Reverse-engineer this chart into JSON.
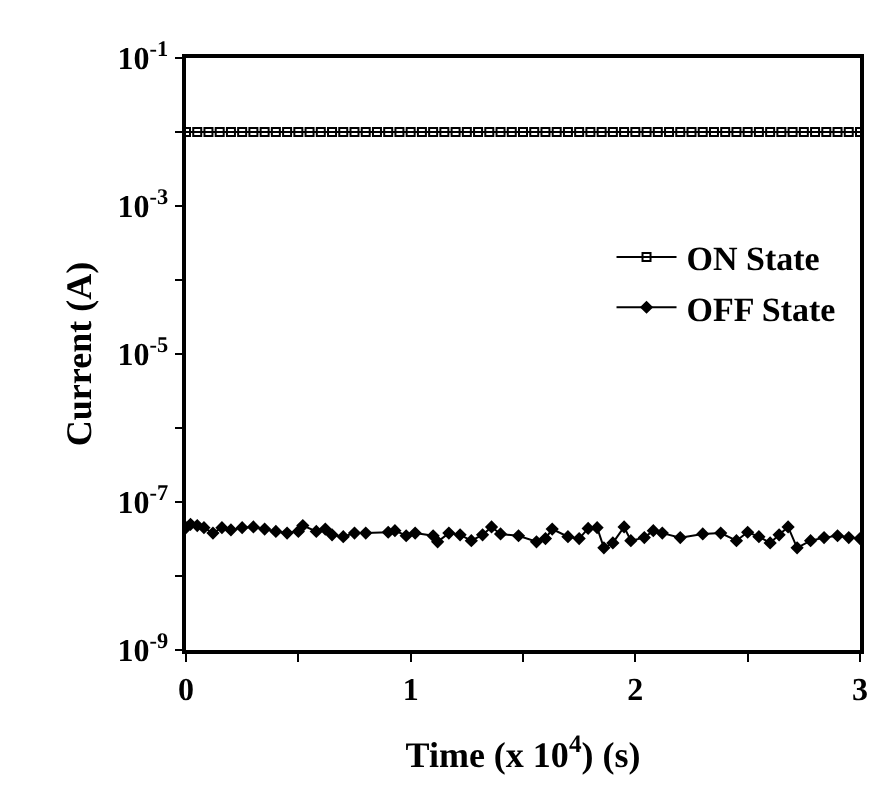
{
  "chart_data": {
    "type": "line",
    "xlabel": "Time (x 10$^{4}$) (s)",
    "ylabel": "Current (A)",
    "log": "y",
    "xlim": [
      0,
      3
    ],
    "xticks": [
      0,
      {
        "value": 0.5,
        "label": null
      },
      1,
      {
        "value": 1.5,
        "label": null
      },
      2,
      {
        "value": 2.5,
        "label": null
      },
      3
    ],
    "ylim": [
      1e-09,
      0.1
    ],
    "yticks": [
      {
        "value": 1e-09,
        "label": "10$^{-9}$"
      },
      {
        "value": 1e-08,
        "label": null
      },
      {
        "value": 1e-07,
        "label": "10$^{-7}$"
      },
      {
        "value": 1e-06,
        "label": null
      },
      {
        "value": 1e-05,
        "label": "10$^{-5}$"
      },
      {
        "value": 0.0001,
        "label": null
      },
      {
        "value": 0.001,
        "label": "10$^{-3}$"
      },
      {
        "value": 0.01,
        "label": null
      },
      {
        "value": 0.1,
        "label": "10$^{-1}$"
      }
    ],
    "grid": false,
    "legend": "right",
    "line_style": "solid",
    "series": [
      {
        "name": "ON State",
        "color": "#000000",
        "marker": "square",
        "x": [
          0,
          0.05,
          0.1,
          0.15,
          0.2,
          0.25,
          0.3,
          0.35,
          0.4,
          0.45,
          0.5,
          0.55,
          0.6,
          0.65,
          0.7,
          0.75,
          0.8,
          0.85,
          0.9,
          0.95,
          1,
          1.05,
          1.1,
          1.15,
          1.2,
          1.25,
          1.3,
          1.35,
          1.4,
          1.45,
          1.5,
          1.55,
          1.6,
          1.65,
          1.7,
          1.75,
          1.8,
          1.85,
          1.9,
          1.95,
          2,
          2.05,
          2.1,
          2.15,
          2.2,
          2.25,
          2.3,
          2.35,
          2.4,
          2.45,
          2.5,
          2.55,
          2.6,
          2.65,
          2.7,
          2.75,
          2.8,
          2.85,
          2.9,
          2.95,
          3
        ],
        "values": [
          0.01,
          0.01,
          0.01,
          0.01,
          0.01,
          0.01,
          0.01,
          0.01,
          0.01,
          0.01,
          0.01,
          0.01,
          0.01,
          0.01,
          0.01,
          0.01,
          0.01,
          0.01,
          0.01,
          0.01,
          0.01,
          0.01,
          0.01,
          0.01,
          0.01,
          0.01,
          0.01,
          0.01,
          0.01,
          0.01,
          0.01,
          0.01,
          0.01,
          0.01,
          0.01,
          0.01,
          0.01,
          0.01,
          0.01,
          0.01,
          0.01,
          0.01,
          0.01,
          0.01,
          0.01,
          0.01,
          0.01,
          0.01,
          0.01,
          0.01,
          0.01,
          0.01,
          0.01,
          0.01,
          0.01,
          0.01,
          0.01,
          0.01,
          0.01,
          0.01,
          0.01
        ]
      },
      {
        "name": "OFF State",
        "color": "#000000",
        "marker": "diamond",
        "x": [
          0,
          0.02,
          0.05,
          0.08,
          0.12,
          0.16,
          0.2,
          0.25,
          0.3,
          0.35,
          0.4,
          0.45,
          0.5,
          0.52,
          0.58,
          0.62,
          0.65,
          0.7,
          0.75,
          0.8,
          0.9,
          0.93,
          0.98,
          1.02,
          1.1,
          1.12,
          1.17,
          1.22,
          1.27,
          1.32,
          1.36,
          1.4,
          1.48,
          1.56,
          1.6,
          1.63,
          1.7,
          1.75,
          1.79,
          1.83,
          1.86,
          1.9,
          1.95,
          1.98,
          2.04,
          2.08,
          2.12,
          2.2,
          2.3,
          2.38,
          2.45,
          2.5,
          2.55,
          2.6,
          2.64,
          2.68,
          2.72,
          2.78,
          2.84,
          2.9,
          2.95,
          3
        ],
        "values": [
          4.5e-08,
          5e-08,
          4.8e-08,
          4.5e-08,
          3.8e-08,
          4.5e-08,
          4.2e-08,
          4.5e-08,
          4.6e-08,
          4.3e-08,
          4e-08,
          3.8e-08,
          4e-08,
          4.8e-08,
          4e-08,
          4.3e-08,
          3.6e-08,
          3.4e-08,
          3.8e-08,
          3.8e-08,
          3.9e-08,
          4.1e-08,
          3.5e-08,
          3.8e-08,
          3.5e-08,
          2.9e-08,
          3.8e-08,
          3.6e-08,
          3e-08,
          3.6e-08,
          4.6e-08,
          3.7e-08,
          3.5e-08,
          2.9e-08,
          3.2e-08,
          4.3e-08,
          3.4e-08,
          3.2e-08,
          4.4e-08,
          4.5e-08,
          2.4e-08,
          2.8e-08,
          4.6e-08,
          3e-08,
          3.3e-08,
          4.1e-08,
          3.8e-08,
          3.3e-08,
          3.7e-08,
          3.8e-08,
          3e-08,
          3.9e-08,
          3.4e-08,
          2.8e-08,
          3.6e-08,
          4.6e-08,
          2.4e-08,
          3e-08,
          3.3e-08,
          3.5e-08,
          3.3e-08,
          3.2e-08
        ]
      }
    ]
  }
}
